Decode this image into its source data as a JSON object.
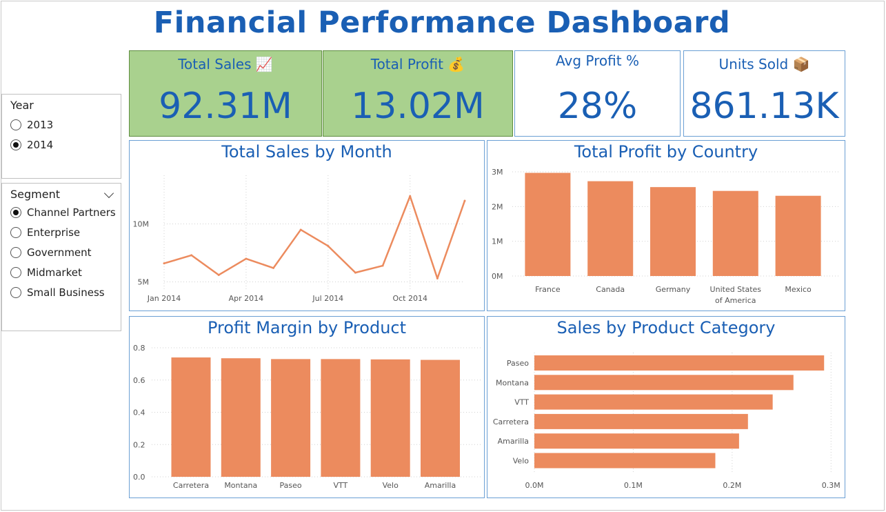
{
  "title": "Financial Performance Dashboard",
  "kpis": {
    "total_sales": {
      "label": "Total Sales 📈",
      "value": "92.31M"
    },
    "total_profit": {
      "label": "Total Profit 💰",
      "value": "13.02M"
    },
    "avg_profit": {
      "label": "Avg Profit %",
      "value": "28%"
    },
    "units_sold": {
      "label": "Units Sold 📦",
      "value": "861.13K"
    }
  },
  "colors": {
    "accent": "#1a5fb4",
    "kpi_green": "#a9d18e",
    "bar": "#ec8b5e",
    "border": "#6a9fd4"
  },
  "year_slicer": {
    "title": "Year",
    "options": [
      {
        "label": "2013",
        "selected": false
      },
      {
        "label": "2014",
        "selected": true
      }
    ]
  },
  "segment_slicer": {
    "title": "Segment",
    "icon": "chevron-down-icon",
    "options": [
      {
        "label": "Channel Partners",
        "selected": true
      },
      {
        "label": "Enterprise",
        "selected": false
      },
      {
        "label": "Government",
        "selected": false
      },
      {
        "label": "Midmarket",
        "selected": false
      },
      {
        "label": "Small Business",
        "selected": false
      }
    ]
  },
  "chart_data": [
    {
      "type": "line",
      "title": "Total Sales by Month",
      "x": [
        "2014-01",
        "2014-02",
        "2014-03",
        "2014-04",
        "2014-05",
        "2014-06",
        "2014-07",
        "2014-08",
        "2014-09",
        "2014-10",
        "2014-11",
        "2014-12"
      ],
      "x_tick_labels": [
        "Jan 2014",
        "Apr 2014",
        "Jul 2014",
        "Oct 2014"
      ],
      "y_tick_labels": [
        "5M",
        "10M"
      ],
      "values": [
        6.6,
        7.3,
        5.6,
        7.0,
        6.2,
        9.5,
        8.1,
        5.8,
        6.4,
        12.4,
        5.3,
        12.0
      ],
      "ylim": [
        4.2,
        14.2
      ],
      "grid": true
    },
    {
      "type": "bar",
      "title": "Total Profit by Country",
      "categories": [
        "France",
        "Canada",
        "Germany",
        "United States of America",
        "Mexico"
      ],
      "values": [
        2.97,
        2.73,
        2.56,
        2.45,
        2.31
      ],
      "y_tick_labels": [
        "0M",
        "1M",
        "2M",
        "3M"
      ],
      "ylim": [
        0,
        3
      ],
      "grid": true
    },
    {
      "type": "bar",
      "title": "Profit Margin by Product",
      "categories": [
        "Carretera",
        "Montana",
        "Paseo",
        "VTT",
        "Velo",
        "Amarilla"
      ],
      "values": [
        0.74,
        0.735,
        0.73,
        0.73,
        0.728,
        0.725
      ],
      "y_tick_labels": [
        "0.0",
        "0.2",
        "0.4",
        "0.6",
        "0.8"
      ],
      "ylim": [
        0,
        0.8
      ],
      "grid": true
    },
    {
      "type": "bar",
      "orientation": "horizontal",
      "title": "Sales by Product Category",
      "categories": [
        "Paseo",
        "Montana",
        "VTT",
        "Carretera",
        "Amarilla",
        "Velo"
      ],
      "values": [
        0.293,
        0.262,
        0.241,
        0.216,
        0.207,
        0.183
      ],
      "x_tick_labels": [
        "0.0M",
        "0.1M",
        "0.2M",
        "0.3M"
      ],
      "xlim": [
        0,
        0.3
      ],
      "grid": true
    }
  ]
}
